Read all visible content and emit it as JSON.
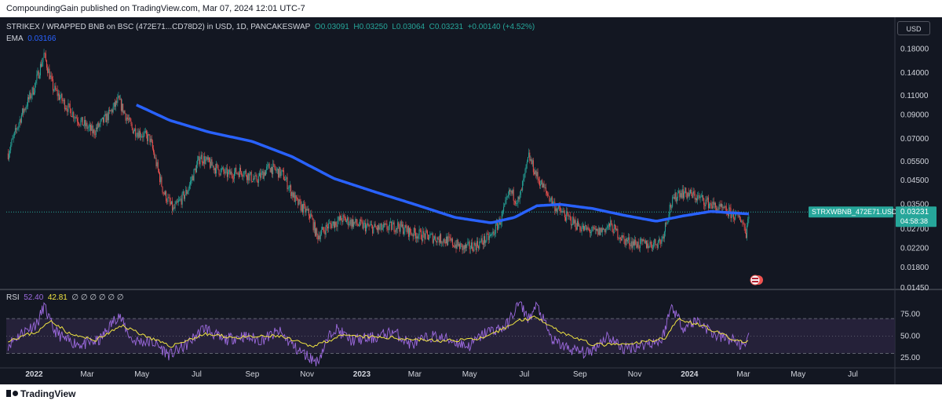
{
  "header": {
    "publisher_line": "CompoundingGain published on TradingView.com, Mar 07, 2024 12:01 UTC-7"
  },
  "legend": {
    "symbol": "STRIKEX / WRAPPED BNB on BSC (472E71...CD78D2) in USD, 1D, PANCAKESWAP",
    "open_label": "O",
    "open": "0.03091",
    "high_label": "H",
    "high": "0.03250",
    "low_label": "L",
    "low": "0.03064",
    "close_label": "C",
    "close": "0.03231",
    "change": "+0.00140 (+4.52%)",
    "ema_label": "EMA",
    "ema_value": "0.03166"
  },
  "currency_button": "USD",
  "price_tag": {
    "symbol": "STRXWBNB_472E71.USD",
    "price": "0.03231",
    "countdown": "04:58:38"
  },
  "rsi_legend": {
    "label": "RSI",
    "rsi": "52.40",
    "ma": "42.81",
    "extra": "∅ ∅ ∅ ∅ ∅ ∅"
  },
  "footer": {
    "brand": "TradingView"
  },
  "colors": {
    "up": "#26a69a",
    "down": "#ef5350",
    "ema": "#2962ff",
    "rsi": "#9c6ade",
    "rsi_ma": "#f0e442",
    "background": "#131722"
  },
  "chart_data": [
    {
      "type": "candlestick",
      "title": "STRIKEX / WRAPPED BNB on BSC (472E71...CD78D2) in USD, 1D, PANCAKESWAP",
      "scale": "log",
      "ylim": [
        0.0145,
        0.2
      ],
      "y_ticks": [
        "0.18000",
        "0.14000",
        "0.11000",
        "0.09000",
        "0.07000",
        "0.05500",
        "0.04500",
        "0.03500",
        "0.02700",
        "0.02200",
        "0.01800",
        "0.01450"
      ],
      "x_ticks": [
        "2022",
        "Mar",
        "May",
        "Jul",
        "Sep",
        "Nov",
        "2023",
        "Mar",
        "May",
        "Jul",
        "Sep",
        "Nov",
        "2024",
        "Mar",
        "May",
        "Jul"
      ],
      "x_range": [
        "2021-12-01",
        "2024-08-15"
      ],
      "close_path": [
        [
          "2021-12-03",
          0.06
        ],
        [
          "2021-12-18",
          0.09
        ],
        [
          "2022-01-01",
          0.12
        ],
        [
          "2022-01-12",
          0.17
        ],
        [
          "2022-01-22",
          0.12
        ],
        [
          "2022-02-05",
          0.1
        ],
        [
          "2022-02-20",
          0.085
        ],
        [
          "2022-03-08",
          0.075
        ],
        [
          "2022-03-25",
          0.09
        ],
        [
          "2022-04-05",
          0.105
        ],
        [
          "2022-04-20",
          0.078
        ],
        [
          "2022-05-10",
          0.07
        ],
        [
          "2022-05-25",
          0.04
        ],
        [
          "2022-06-05",
          0.033
        ],
        [
          "2022-06-20",
          0.04
        ],
        [
          "2022-07-05",
          0.058
        ],
        [
          "2022-07-20",
          0.052
        ],
        [
          "2022-08-05",
          0.048
        ],
        [
          "2022-08-20",
          0.05
        ],
        [
          "2022-09-05",
          0.045
        ],
        [
          "2022-09-20",
          0.052
        ],
        [
          "2022-10-05",
          0.048
        ],
        [
          "2022-10-20",
          0.036
        ],
        [
          "2022-11-05",
          0.031
        ],
        [
          "2022-11-12",
          0.025
        ],
        [
          "2022-11-25",
          0.028
        ],
        [
          "2022-12-10",
          0.03
        ],
        [
          "2023-01-01",
          0.028
        ],
        [
          "2023-01-20",
          0.027
        ],
        [
          "2023-02-10",
          0.028
        ],
        [
          "2023-02-25",
          0.026
        ],
        [
          "2023-03-15",
          0.025
        ],
        [
          "2023-04-05",
          0.024
        ],
        [
          "2023-04-25",
          0.022
        ],
        [
          "2023-05-10",
          0.023
        ],
        [
          "2023-05-25",
          0.025
        ],
        [
          "2023-06-05",
          0.03
        ],
        [
          "2023-06-15",
          0.04
        ],
        [
          "2023-06-25",
          0.036
        ],
        [
          "2023-07-06",
          0.058
        ],
        [
          "2023-07-15",
          0.047
        ],
        [
          "2023-07-25",
          0.04
        ],
        [
          "2023-08-05",
          0.034
        ],
        [
          "2023-08-20",
          0.03
        ],
        [
          "2023-09-05",
          0.027
        ],
        [
          "2023-09-20",
          0.026
        ],
        [
          "2023-10-05",
          0.028
        ],
        [
          "2023-10-20",
          0.024
        ],
        [
          "2023-11-05",
          0.023
        ],
        [
          "2023-11-20",
          0.023
        ],
        [
          "2023-12-01",
          0.024
        ],
        [
          "2023-12-10",
          0.034
        ],
        [
          "2023-12-20",
          0.04
        ],
        [
          "2024-01-01",
          0.039
        ],
        [
          "2024-01-15",
          0.037
        ],
        [
          "2024-01-30",
          0.034
        ],
        [
          "2024-02-15",
          0.032
        ],
        [
          "2024-02-28",
          0.03
        ],
        [
          "2024-03-04",
          0.026
        ],
        [
          "2024-03-07",
          0.03231
        ]
      ],
      "ema_path": [
        [
          "2022-04-25",
          0.1
        ],
        [
          "2022-06-01",
          0.085
        ],
        [
          "2022-07-15",
          0.075
        ],
        [
          "2022-09-01",
          0.068
        ],
        [
          "2022-10-15",
          0.058
        ],
        [
          "2022-12-01",
          0.046
        ],
        [
          "2023-01-15",
          0.04
        ],
        [
          "2023-03-01",
          0.035
        ],
        [
          "2023-04-15",
          0.0305
        ],
        [
          "2023-05-25",
          0.0288
        ],
        [
          "2023-06-20",
          0.0305
        ],
        [
          "2023-07-15",
          0.0345
        ],
        [
          "2023-08-10",
          0.035
        ],
        [
          "2023-09-15",
          0.0335
        ],
        [
          "2023-10-20",
          0.0312
        ],
        [
          "2023-11-25",
          0.0293
        ],
        [
          "2023-12-25",
          0.031
        ],
        [
          "2024-01-25",
          0.0325
        ],
        [
          "2024-03-07",
          0.03166
        ]
      ]
    },
    {
      "type": "line",
      "title": "RSI",
      "ylim": [
        15,
        90
      ],
      "y_ticks": [
        "75.00",
        "50.00",
        "25.00"
      ],
      "band": [
        30,
        70
      ],
      "series": [
        {
          "name": "RSI",
          "values_path": [
            [
              "2021-12-03",
              40
            ],
            [
              "2021-12-20",
              55
            ],
            [
              "2022-01-05",
              65
            ],
            [
              "2022-01-12",
              85
            ],
            [
              "2022-01-22",
              58
            ],
            [
              "2022-02-05",
              45
            ],
            [
              "2022-02-25",
              40
            ],
            [
              "2022-03-15",
              45
            ],
            [
              "2022-04-05",
              75
            ],
            [
              "2022-04-20",
              45
            ],
            [
              "2022-05-15",
              42
            ],
            [
              "2022-06-01",
              28
            ],
            [
              "2022-06-20",
              40
            ],
            [
              "2022-07-10",
              60
            ],
            [
              "2022-07-30",
              45
            ],
            [
              "2022-08-20",
              50
            ],
            [
              "2022-09-10",
              45
            ],
            [
              "2022-10-01",
              55
            ],
            [
              "2022-10-20",
              35
            ],
            [
              "2022-11-12",
              20
            ],
            [
              "2022-12-01",
              60
            ],
            [
              "2022-12-20",
              45
            ],
            [
              "2023-01-15",
              48
            ],
            [
              "2023-02-05",
              55
            ],
            [
              "2023-02-25",
              40
            ],
            [
              "2023-03-20",
              50
            ],
            [
              "2023-04-10",
              45
            ],
            [
              "2023-04-30",
              38
            ],
            [
              "2023-05-20",
              55
            ],
            [
              "2023-06-10",
              60
            ],
            [
              "2023-06-25",
              88
            ],
            [
              "2023-07-06",
              70
            ],
            [
              "2023-07-15",
              85
            ],
            [
              "2023-08-01",
              45
            ],
            [
              "2023-08-20",
              35
            ],
            [
              "2023-09-10",
              30
            ],
            [
              "2023-10-01",
              50
            ],
            [
              "2023-10-20",
              35
            ],
            [
              "2023-11-10",
              40
            ],
            [
              "2023-12-01",
              45
            ],
            [
              "2023-12-12",
              85
            ],
            [
              "2023-12-25",
              60
            ],
            [
              "2024-01-10",
              68
            ],
            [
              "2024-01-30",
              50
            ],
            [
              "2024-02-20",
              45
            ],
            [
              "2024-03-04",
              35
            ],
            [
              "2024-03-07",
              52.4
            ]
          ]
        },
        {
          "name": "RSI-based MA",
          "values_path": [
            [
              "2021-12-03",
              45
            ],
            [
              "2022-01-05",
              55
            ],
            [
              "2022-01-20",
              68
            ],
            [
              "2022-02-10",
              52
            ],
            [
              "2022-03-10",
              45
            ],
            [
              "2022-04-10",
              62
            ],
            [
              "2022-05-01",
              52
            ],
            [
              "2022-06-01",
              38
            ],
            [
              "2022-07-10",
              52
            ],
            [
              "2022-08-15",
              48
            ],
            [
              "2022-10-01",
              50
            ],
            [
              "2022-11-05",
              38
            ],
            [
              "2022-12-10",
              50
            ],
            [
              "2023-02-01",
              48
            ],
            [
              "2023-04-01",
              44
            ],
            [
              "2023-05-20",
              48
            ],
            [
              "2023-06-25",
              68
            ],
            [
              "2023-07-15",
              72
            ],
            [
              "2023-08-10",
              55
            ],
            [
              "2023-09-15",
              40
            ],
            [
              "2023-10-25",
              40
            ],
            [
              "2023-12-05",
              48
            ],
            [
              "2023-12-20",
              70
            ],
            [
              "2024-01-20",
              60
            ],
            [
              "2024-02-20",
              45
            ],
            [
              "2024-03-07",
              42.81
            ]
          ]
        }
      ]
    }
  ]
}
